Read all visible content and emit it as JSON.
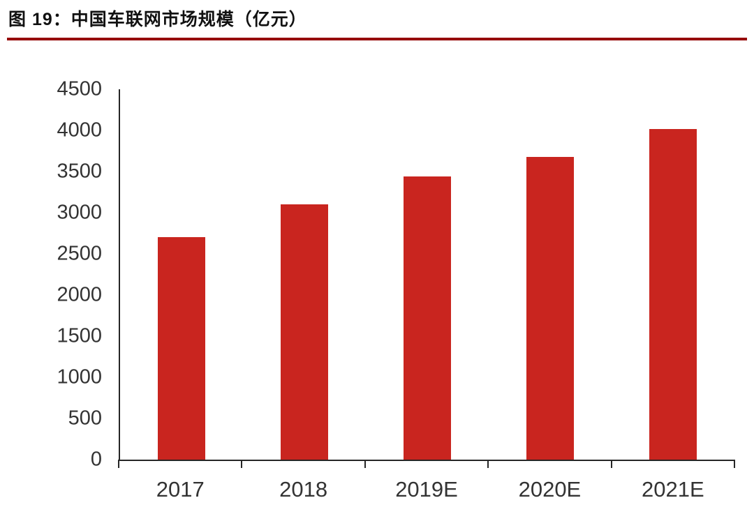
{
  "header": {
    "title": "图 19：中国车联网市场规模（亿元）"
  },
  "chart_data": {
    "type": "bar",
    "title": "图 19：中国车联网市场规模（亿元）",
    "categories": [
      "2017",
      "2018",
      "2019E",
      "2020E",
      "2021E"
    ],
    "values": [
      2700,
      3100,
      3440,
      3680,
      4020
    ],
    "xlabel": "",
    "ylabel": "",
    "ylim": [
      0,
      4500
    ],
    "ytick_step": 500,
    "grid": false,
    "legend_position": "none",
    "bar_color": "#C9251F"
  },
  "colors": {
    "bar_red": "#C9251F",
    "title_underline_red": "#960B0B",
    "axis_line": "#262626",
    "label_text": "#333333",
    "title_text": "#111111",
    "background": "#FFFFFF"
  }
}
